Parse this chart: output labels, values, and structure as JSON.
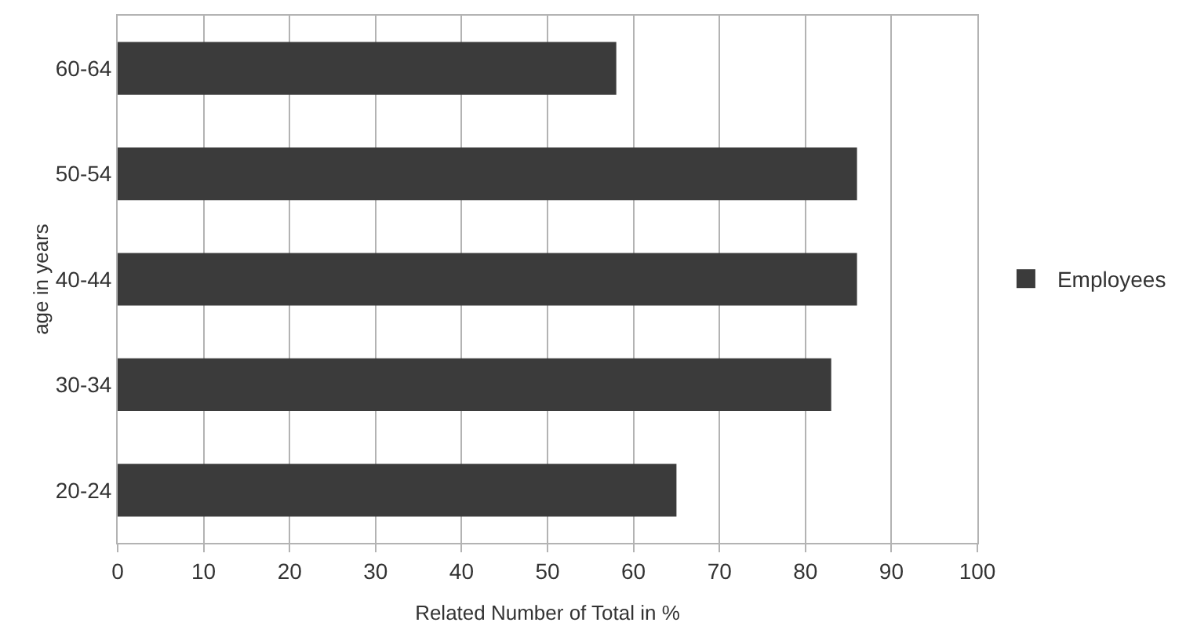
{
  "chart_data": {
    "type": "bar",
    "orientation": "horizontal",
    "xlabel": "Related Number of Total in %",
    "ylabel": "age in years",
    "categories": [
      "60-64",
      "50-54",
      "40-44",
      "30-34",
      "20-24"
    ],
    "series": [
      {
        "name": "Employees",
        "color": "#3b3b3b",
        "values": [
          58,
          86,
          86,
          83,
          65
        ]
      }
    ],
    "xlim": [
      0,
      100
    ],
    "xticks": [
      0,
      10,
      20,
      30,
      40,
      50,
      60,
      70,
      80,
      90,
      100
    ],
    "grid": "x",
    "legend": "right"
  }
}
